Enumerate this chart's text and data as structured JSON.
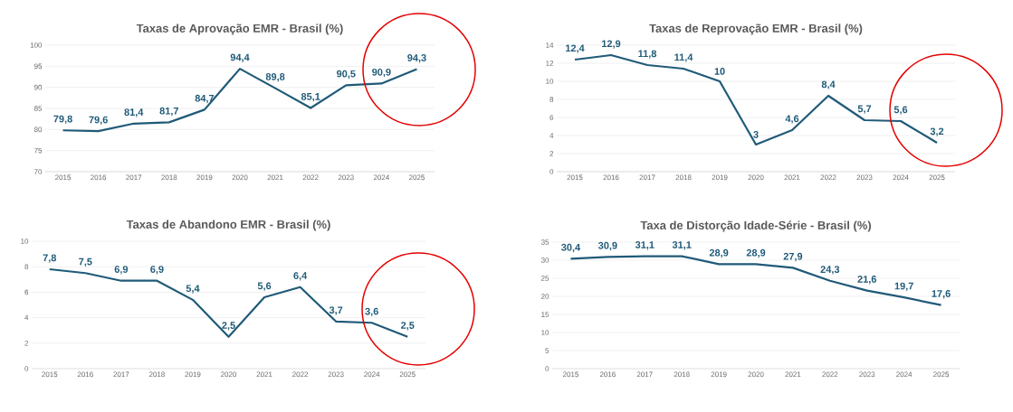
{
  "chart_data": [
    {
      "type": "line",
      "title": "Taxas de Aprovação EMR - Brasil (%)",
      "categories": [
        "2015",
        "2016",
        "2017",
        "2018",
        "2019",
        "2020",
        "2021",
        "2022",
        "2023",
        "2024",
        "2025"
      ],
      "series": [
        {
          "color": "#1f5a78",
          "values": [
            79.8,
            79.6,
            81.4,
            81.7,
            84.7,
            94.4,
            89.8,
            85.1,
            90.5,
            90.9,
            94.3
          ],
          "value_labels": [
            "79,8",
            "79,6",
            "81,4",
            "81,7",
            "84,7",
            "94,4",
            "89,8",
            "85,1",
            "90,5",
            "90,9",
            "94,3"
          ]
        }
      ],
      "ylim": [
        70,
        100
      ],
      "yticks": [
        70,
        75,
        80,
        85,
        90,
        95,
        100
      ],
      "grid": "y",
      "marker": "none",
      "line_style": "solid"
    },
    {
      "type": "line",
      "title": "Taxas de Reprovação EMR - Brasil (%)",
      "categories": [
        "2015",
        "2016",
        "2017",
        "2018",
        "2019",
        "2020",
        "2021",
        "2022",
        "2023",
        "2024",
        "2025"
      ],
      "series": [
        {
          "color": "#1f5a78",
          "values": [
            12.4,
            12.9,
            11.8,
            11.4,
            10,
            3,
            4.6,
            8.4,
            5.7,
            5.6,
            3.2
          ],
          "value_labels": [
            "12,4",
            "12,9",
            "11,8",
            "11,4",
            "10",
            "3",
            "4,6",
            "8,4",
            "5,7",
            "5,6",
            "3,2"
          ]
        }
      ],
      "ylim": [
        0,
        14
      ],
      "yticks": [
        0,
        2,
        4,
        6,
        8,
        10,
        12,
        14
      ],
      "grid": "y",
      "marker": "none",
      "line_style": "solid"
    },
    {
      "type": "line",
      "title": "Taxas de Abandono EMR - Brasil (%)",
      "categories": [
        "2015",
        "2016",
        "2017",
        "2018",
        "2019",
        "2020",
        "2021",
        "2022",
        "2023",
        "2024",
        "2025"
      ],
      "series": [
        {
          "color": "#1f5a78",
          "values": [
            7.8,
            7.5,
            6.9,
            6.9,
            5.4,
            2.5,
            5.6,
            6.4,
            3.7,
            3.6,
            2.5
          ],
          "value_labels": [
            "7,8",
            "7,5",
            "6,9",
            "6,9",
            "5,4",
            "2,5",
            "5,6",
            "6,4",
            "3,7",
            "3,6",
            "2,5"
          ]
        }
      ],
      "ylim": [
        0,
        10
      ],
      "yticks": [
        0,
        2,
        4,
        6,
        8,
        10
      ],
      "grid": "y",
      "marker": "none",
      "line_style": "solid"
    },
    {
      "type": "line",
      "title": "Taxa de Distorção Idade-Série - Brasil (%)",
      "categories": [
        "2015",
        "2016",
        "2017",
        "2018",
        "2019",
        "2020",
        "2021",
        "2022",
        "2023",
        "2024",
        "2025"
      ],
      "series": [
        {
          "color": "#1f5a78",
          "values": [
            30.4,
            30.9,
            31.1,
            31.1,
            28.9,
            28.9,
            27.9,
            24.3,
            21.6,
            19.7,
            17.6
          ],
          "value_labels": [
            "30,4",
            "30,9",
            "31,1",
            "31,1",
            "28,9",
            "28,9",
            "27,9",
            "24,3",
            "21,6",
            "19,7",
            "17,6"
          ]
        }
      ],
      "ylim": [
        0,
        35
      ],
      "yticks": [
        0,
        5,
        10,
        15,
        20,
        25,
        30,
        35
      ],
      "grid": "y",
      "marker": "none",
      "line_style": "solid"
    }
  ]
}
